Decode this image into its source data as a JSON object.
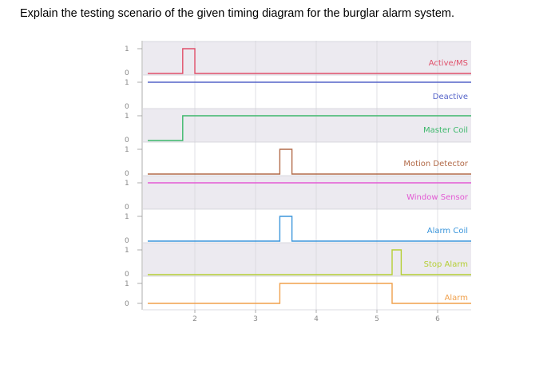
{
  "question": "Explain the testing scenario of the given timing diagram for the burglar alarm system.",
  "chart_data": {
    "type": "timing",
    "x_ticks": [
      2,
      3,
      4,
      5,
      6
    ],
    "y_levels": [
      "0",
      "1"
    ],
    "signals": [
      {
        "name": "Active/MS",
        "color": "#e0506a",
        "initial": 0,
        "transitions": [
          [
            1.8,
            1
          ],
          [
            2.0,
            0
          ]
        ]
      },
      {
        "name": "Deactive",
        "color": "#5563c9",
        "initial": 1,
        "transitions": []
      },
      {
        "name": "Master Coil",
        "color": "#3cb86b",
        "initial": 0,
        "transitions": [
          [
            1.8,
            1
          ]
        ]
      },
      {
        "name": "Motion Detector",
        "color": "#b26a48",
        "initial": 0,
        "transitions": [
          [
            3.4,
            1
          ],
          [
            3.6,
            0
          ]
        ]
      },
      {
        "name": "Window Sensor",
        "color": "#e35ad4",
        "initial": 1,
        "transitions": []
      },
      {
        "name": "Alarm Coil",
        "color": "#3b96db",
        "initial": 0,
        "transitions": [
          [
            3.4,
            1
          ],
          [
            3.6,
            0
          ]
        ]
      },
      {
        "name": "Stop Alarm",
        "color": "#b5cf34",
        "initial": 0,
        "transitions": [
          [
            5.25,
            1
          ],
          [
            5.4,
            0
          ]
        ]
      },
      {
        "name": "Alarm",
        "color": "#f0a04c",
        "initial": 0,
        "transitions": [
          [
            3.4,
            1
          ],
          [
            5.25,
            0
          ]
        ]
      }
    ]
  }
}
